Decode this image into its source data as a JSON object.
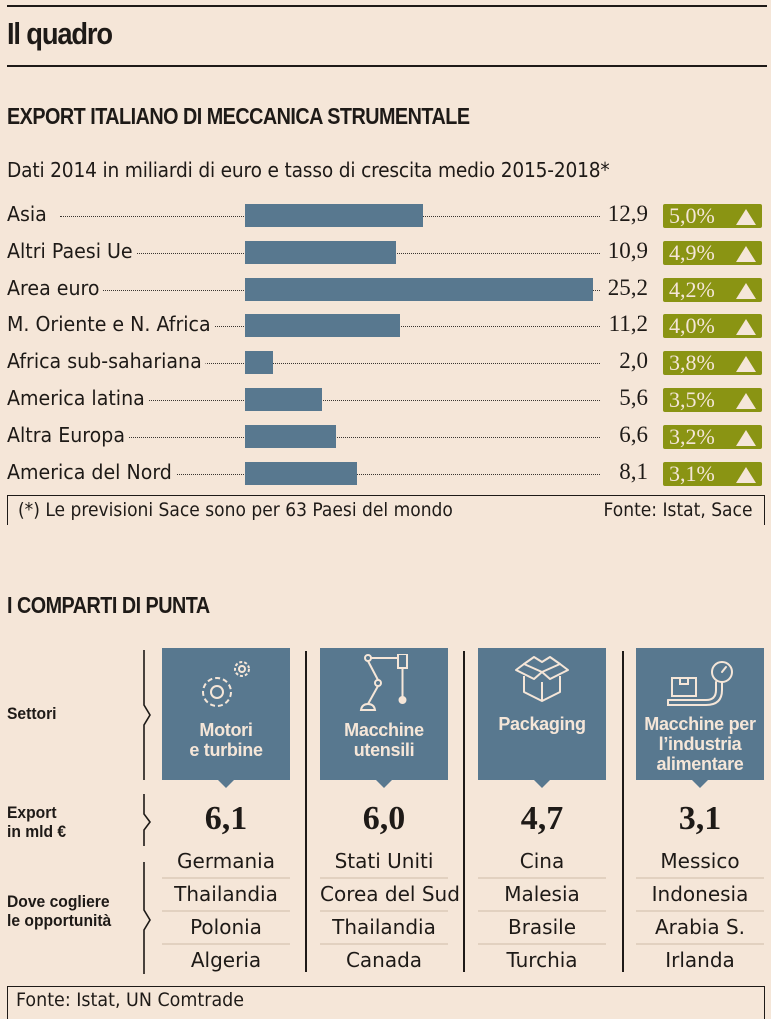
{
  "header": {
    "title": "Il quadro"
  },
  "section1": {
    "title": "EXPORT ITALIANO DI MECCANICA STRUMENTALE",
    "subtitle": "Dati 2014 in miliardi di euro e tasso di crescita medio 2015-2018*",
    "footnote": "(*) Le previsioni Sace sono per 63 Paesi del mondo",
    "source": "Fonte: Istat, Sace"
  },
  "chart_data": {
    "type": "bar",
    "orientation": "horizontal",
    "title": "EXPORT ITALIANO DI MECCANICA STRUMENTALE",
    "subtitle": "Dati 2014 in miliardi di euro e tasso di crescita medio 2015-2018*",
    "xlabel": "",
    "ylabel": "",
    "xlim": [
      0,
      25.2
    ],
    "grid": false,
    "categories": [
      "Asia",
      "Altri Paesi Ue",
      "Area euro",
      "M. Oriente e N. Africa",
      "Africa sub-sahariana",
      "America latina",
      "Altra Europa",
      "America del Nord"
    ],
    "series": [
      {
        "name": "Export 2014 (mld €)",
        "values": [
          12.9,
          10.9,
          25.2,
          11.2,
          2.0,
          5.6,
          6.6,
          8.1
        ],
        "labels": [
          "12,9",
          "10,9",
          "25,2",
          "11,2",
          "2,0",
          "5,6",
          "6,6",
          "8,1"
        ]
      },
      {
        "name": "Tasso di crescita medio 2015-2018 (%)",
        "values": [
          5.0,
          4.9,
          4.2,
          4.0,
          3.8,
          3.5,
          3.2,
          3.1
        ],
        "labels": [
          "5,0%",
          "4,9%",
          "4,2%",
          "4,0%",
          "3,8%",
          "3,5%",
          "3,2%",
          "3,1%"
        ]
      }
    ],
    "colors": {
      "bar": "#58788f",
      "badge": "#8a9413"
    },
    "annotation": "(*) Le previsioni Sace sono per 63 Paesi del mondo",
    "source": "Fonte: Istat, Sace"
  },
  "section2": {
    "title": "I COMPARTI DI PUNTA",
    "row_labels": {
      "settori": "Settori",
      "export_l1": "Export",
      "export_l2": "in mld €",
      "dove_l1": "Dove cogliere",
      "dove_l2": "le opportunità"
    },
    "sectors": [
      {
        "icon": "gears-icon",
        "title_l1": "Motori",
        "title_l2": "e turbine",
        "title_l3": "",
        "export": "6,1",
        "countries": [
          "Germania",
          "Thailandia",
          "Polonia",
          "Algeria"
        ]
      },
      {
        "icon": "robot-arm-icon",
        "title_l1": "Macchine",
        "title_l2": "utensili",
        "title_l3": "",
        "export": "6,0",
        "countries": [
          "Stati Uniti",
          "Corea del Sud",
          "Thailandia",
          "Canada"
        ]
      },
      {
        "icon": "open-box-icon",
        "title_l1": "Packaging",
        "title_l2": "",
        "title_l3": "",
        "export": "4,7",
        "countries": [
          "Cina",
          "Malesia",
          "Brasile",
          "Turchia"
        ]
      },
      {
        "icon": "scale-icon",
        "title_l1": "Macchine per",
        "title_l2": "l’industria",
        "title_l3": "alimentare",
        "export": "3,1",
        "countries": [
          "Messico",
          "Indonesia",
          "Arabia S.",
          "Irlanda"
        ]
      }
    ],
    "source": "Fonte: Istat, UN Comtrade"
  }
}
